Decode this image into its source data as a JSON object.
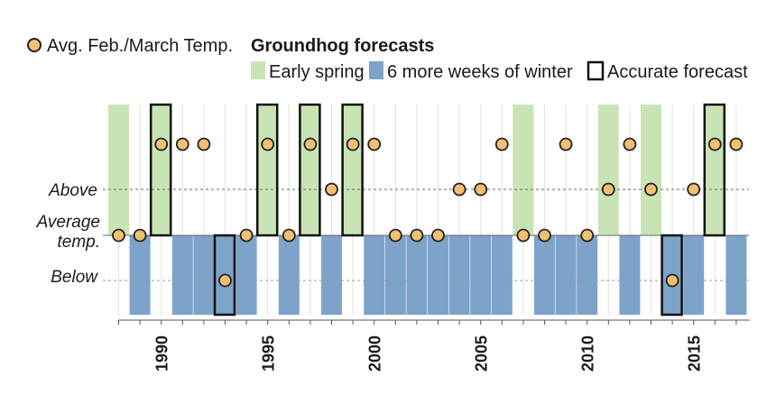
{
  "legend": {
    "temp_label": "Avg. Feb./March Temp.",
    "title": "Groundhog forecasts",
    "early_label": "Early spring",
    "winter_label": "6 more weeks of winter",
    "accurate_label": "Accurate forecast"
  },
  "colors": {
    "early": "#c9e4b4",
    "winter": "#7da3ca",
    "dot_fill": "#f0c070",
    "dot_stroke": "#222222",
    "accurate_stroke": "#111111",
    "grid": "#e2e2e2"
  },
  "chart_data": {
    "type": "scatter",
    "title": "Groundhog forecasts",
    "ylabels": {
      "above": "Above",
      "average_line1": "Average",
      "average_line2": "temp.",
      "below": "Below"
    },
    "xticks": [
      1990,
      1995,
      2000,
      2005,
      2010,
      2015
    ],
    "xlim": [
      1988,
      2017
    ],
    "temp_levels": {
      "above_high": 2,
      "above": 1,
      "average": 0,
      "below": -1
    },
    "years": [
      1988,
      1989,
      1990,
      1991,
      1992,
      1993,
      1994,
      1995,
      1996,
      1997,
      1998,
      1999,
      2000,
      2001,
      2002,
      2003,
      2004,
      2005,
      2006,
      2007,
      2008,
      2009,
      2010,
      2011,
      2012,
      2013,
      2014,
      2015,
      2016,
      2017
    ],
    "forecast": [
      "early",
      "winter",
      "early",
      "winter",
      "winter",
      "winter",
      "winter",
      "early",
      "winter",
      "early",
      "winter",
      "early",
      "winter",
      "winter",
      "winter",
      "winter",
      "winter",
      "winter",
      "winter",
      "early",
      "winter",
      "winter",
      "winter",
      "early",
      "winter",
      "early",
      "winter",
      "winter",
      "early",
      "winter"
    ],
    "temp_level": [
      0,
      0,
      2,
      2,
      2,
      -1,
      0,
      2,
      0,
      2,
      1,
      2,
      2,
      0,
      0,
      0,
      1,
      1,
      2,
      0,
      0,
      2,
      0,
      1,
      2,
      1,
      -1,
      1,
      2,
      2
    ],
    "accurate": [
      false,
      false,
      true,
      false,
      false,
      true,
      false,
      true,
      false,
      true,
      false,
      true,
      false,
      false,
      false,
      false,
      false,
      false,
      false,
      false,
      false,
      false,
      false,
      false,
      false,
      false,
      true,
      false,
      true,
      false
    ]
  }
}
